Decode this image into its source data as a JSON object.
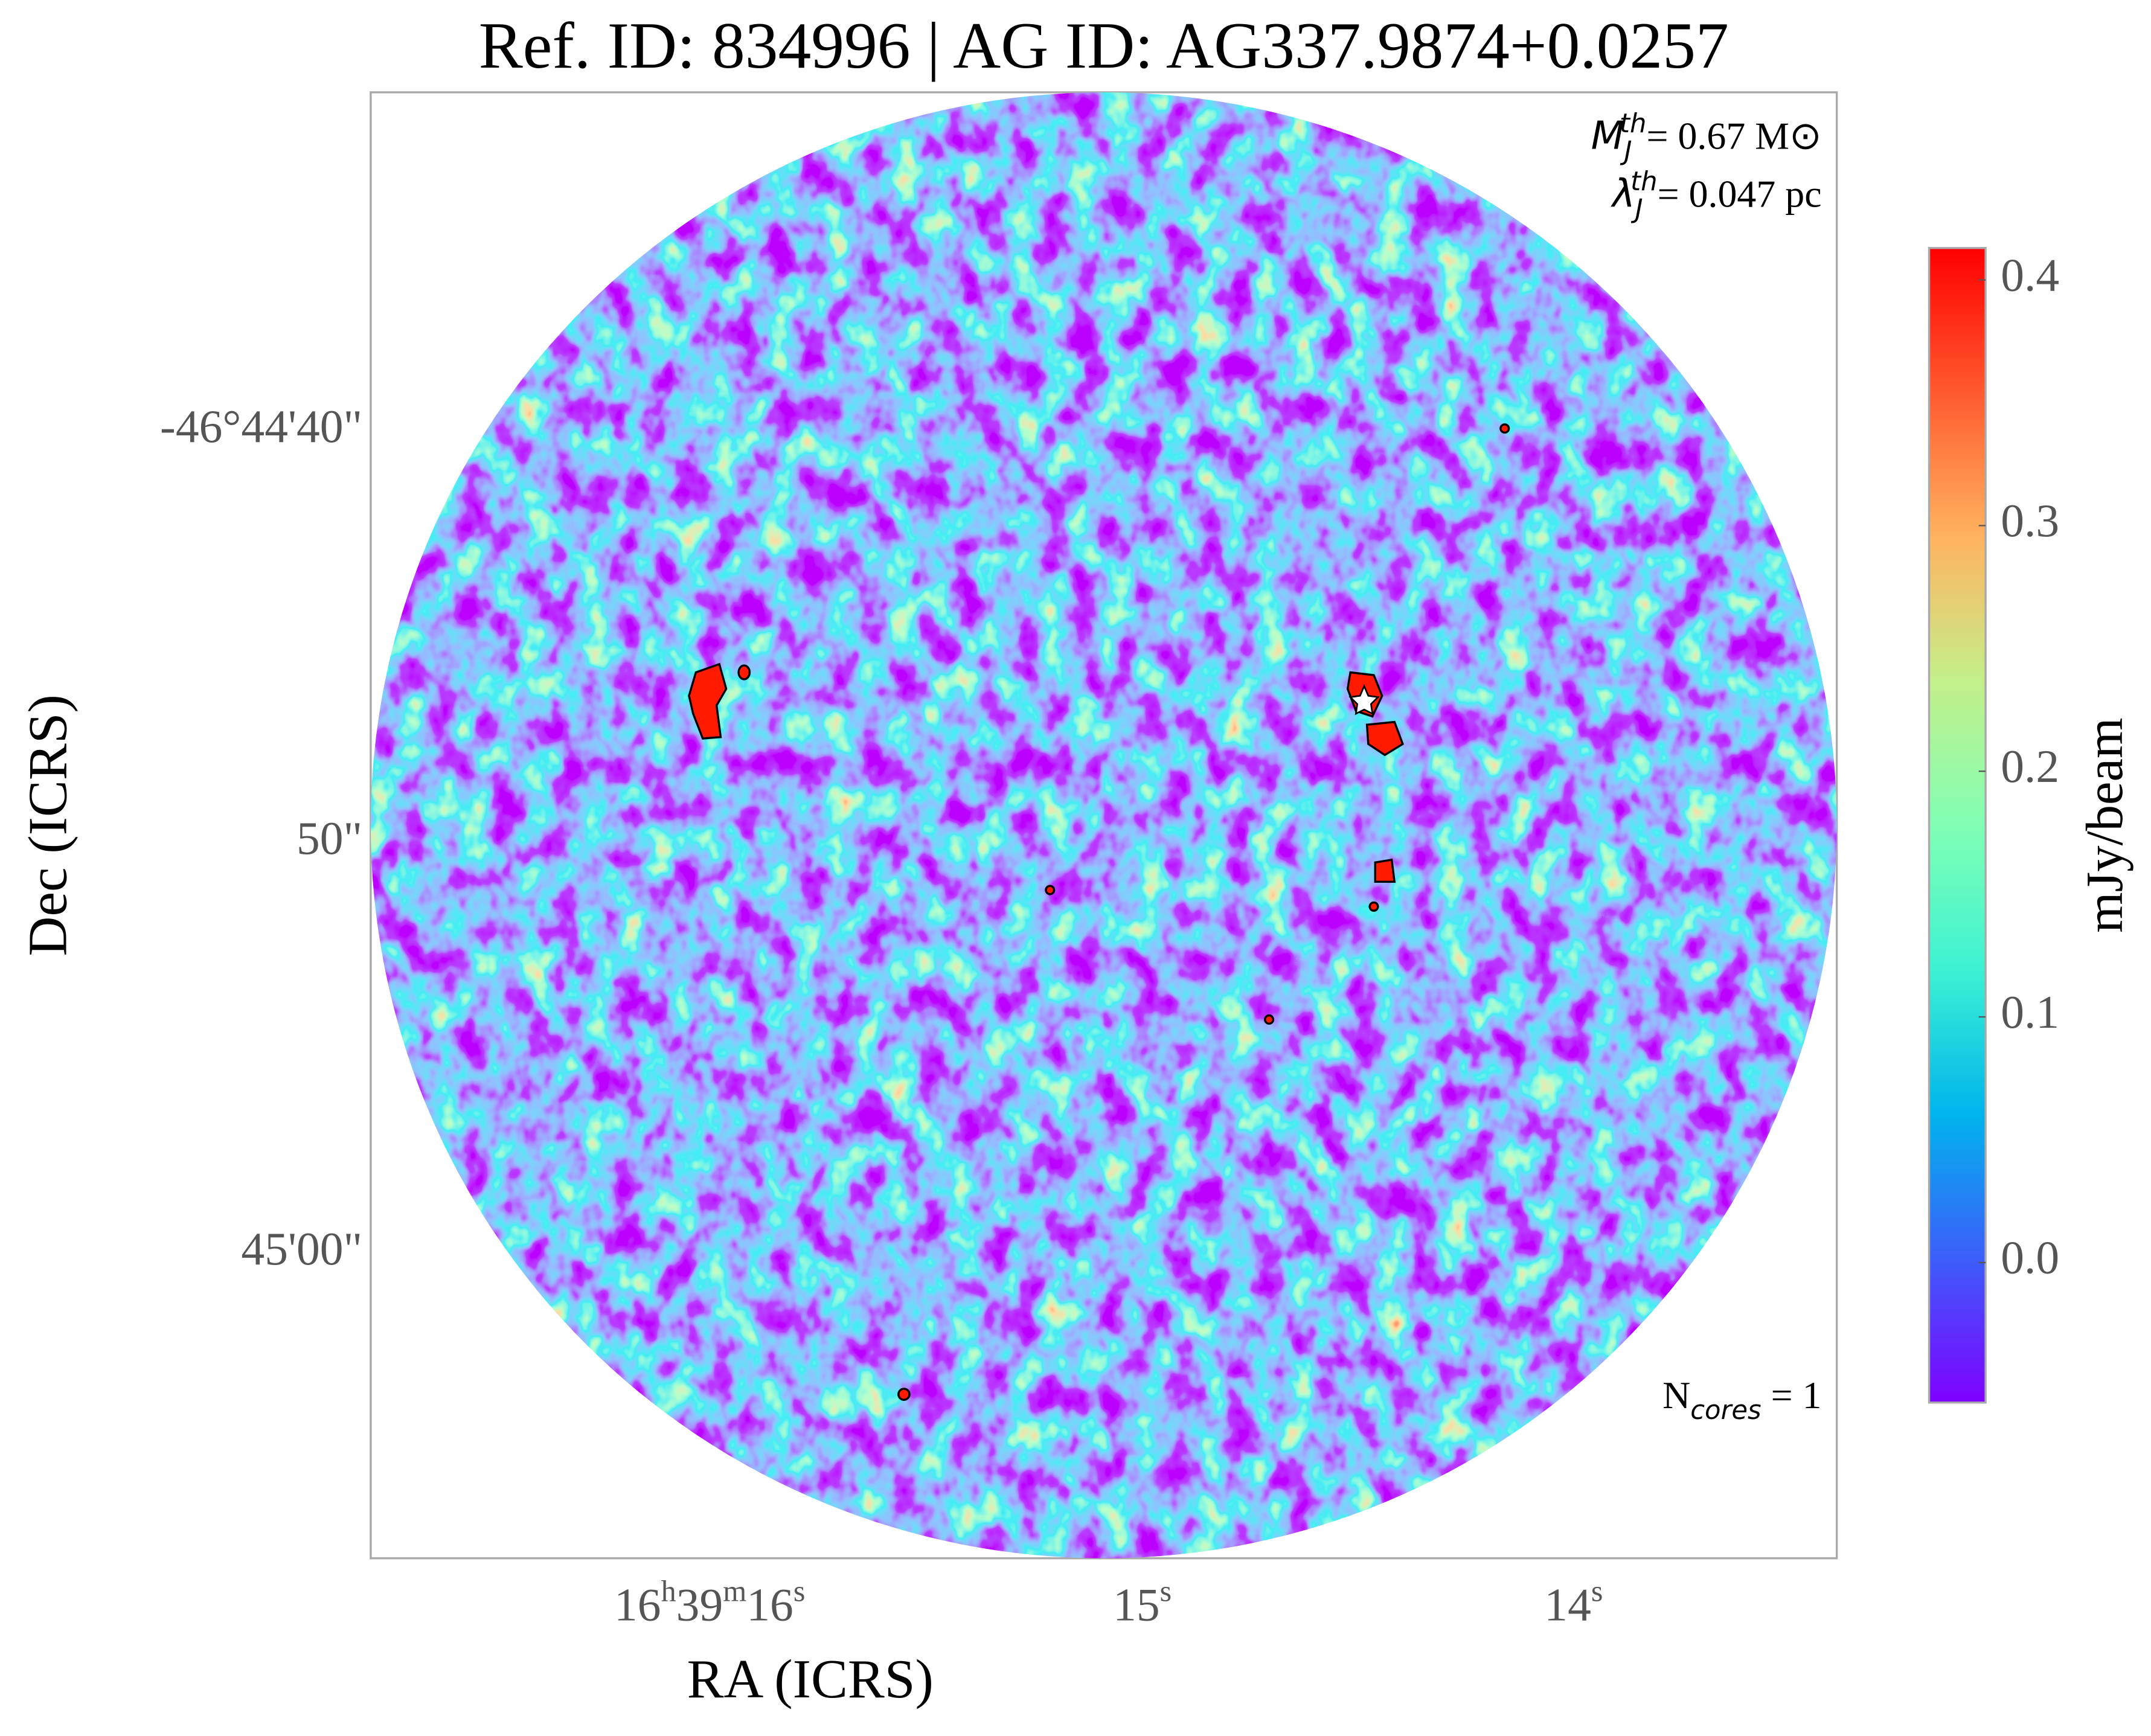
{
  "chart_data": {
    "type": "image",
    "title": "Ref. ID: 834996 | AG ID: AG337.9874+0.0257",
    "x_label": "RA (ICRS)",
    "y_label": "Dec (ICRS)",
    "x_tick_labels": [
      [
        "16",
        "h",
        "39",
        "m",
        "16",
        "s"
      ],
      [
        "15",
        "s"
      ],
      [
        "14",
        "s"
      ]
    ],
    "y_tick_labels": [
      "-46°44'40\"",
      "50\"",
      "45'00\""
    ],
    "colorbar": {
      "label": "mJy/beam",
      "clim": [
        -0.057,
        0.413
      ],
      "ticks": [
        {
          "value": 0,
          "label": "0.0"
        },
        0.1,
        0.2,
        0.3,
        0.4
      ],
      "colormap": "rainbow"
    },
    "annotations": {
      "jeans_mass": {
        "symbol": "M",
        "sub": "J",
        "sup": "th",
        "text": "= 0.67 M⊙"
      },
      "jeans_length": {
        "symbol": "λ",
        "sub": "J",
        "sup": "th",
        "text": "= 0.047 pc"
      },
      "cores": {
        "symbol": "N",
        "sub": "cores",
        "text": " = 1"
      }
    }
  }
}
